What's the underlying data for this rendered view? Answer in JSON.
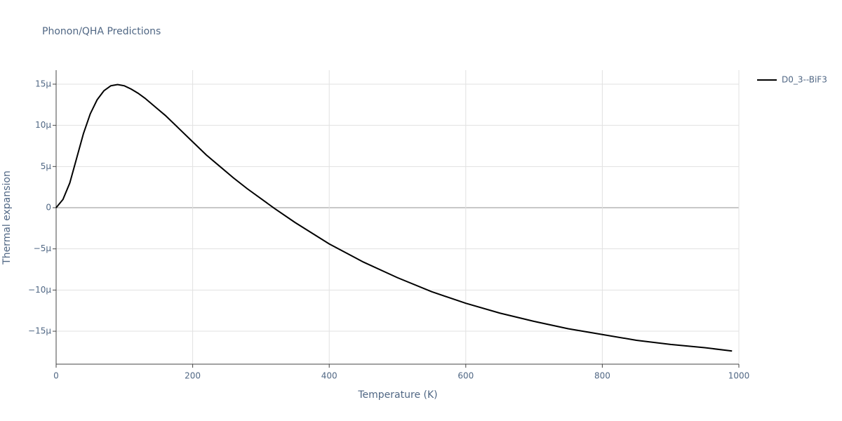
{
  "chart_data": {
    "type": "line",
    "title": "Phonon/QHA Predictions",
    "x_label": "Temperature (K)",
    "y_label": "Thermal expansion",
    "x": [
      0,
      10,
      20,
      30,
      40,
      50,
      60,
      70,
      80,
      90,
      100,
      110,
      120,
      130,
      140,
      150,
      160,
      180,
      200,
      220,
      240,
      260,
      280,
      300,
      320,
      350,
      400,
      450,
      500,
      550,
      600,
      650,
      700,
      750,
      800,
      850,
      900,
      950,
      990
    ],
    "series": [
      {
        "name": "D0_3--BiF3",
        "color": "#000000",
        "values": [
          0,
          1e-06,
          3e-06,
          6e-06,
          9e-06,
          1.14e-05,
          1.31e-05,
          1.42e-05,
          1.48e-05,
          1.495e-05,
          1.48e-05,
          1.44e-05,
          1.39e-05,
          1.33e-05,
          1.26e-05,
          1.19e-05,
          1.12e-05,
          9.6e-06,
          8e-06,
          6.4e-06,
          5e-06,
          3.6e-06,
          2.3e-06,
          1.1e-06,
          -1e-07,
          -1.8e-06,
          -4.4e-06,
          -6.6e-06,
          -8.5e-06,
          -1.02e-05,
          -1.16e-05,
          -1.28e-05,
          -1.38e-05,
          -1.47e-05,
          -1.54e-05,
          -1.61e-05,
          -1.66e-05,
          -1.7e-05,
          -1.74e-05
        ]
      }
    ],
    "xlim": [
      0,
      1000
    ],
    "xticks": [
      0,
      200,
      400,
      600,
      800,
      1000
    ],
    "ylim": [
      -1.9e-05,
      1.67e-05
    ],
    "yticks": [
      {
        "value": -1.5e-05,
        "label": "−15µ"
      },
      {
        "value": -1e-05,
        "label": "−10µ"
      },
      {
        "value": -5e-06,
        "label": "−5µ"
      },
      0,
      {
        "value": 5e-06,
        "label": "5µ"
      },
      {
        "value": 1e-05,
        "label": "10µ"
      },
      {
        "value": 1.5e-05,
        "label": "15µ"
      }
    ],
    "grid": true
  }
}
